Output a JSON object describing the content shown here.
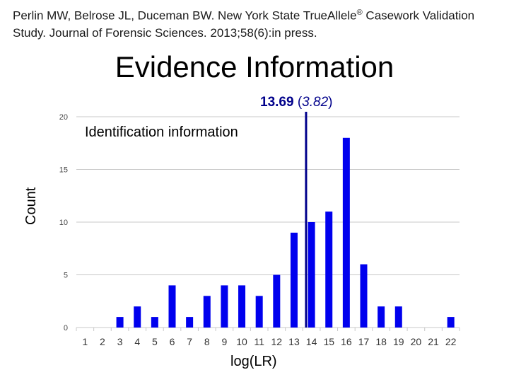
{
  "slide": {
    "citation_text": "Perlin MW, Belrose JL, Duceman BW. New York State TrueAllele",
    "citation_reg": "®",
    "citation_text2": " Casework Validation Study. Journal of Forensic Sciences. 2013;58(6):in press.",
    "title": "Evidence Information"
  },
  "chart_data": {
    "type": "bar",
    "panel_label": "Identification information",
    "xlabel": "log(LR)",
    "ylabel": "Count",
    "categories": [
      "1",
      "2",
      "3",
      "4",
      "5",
      "6",
      "7",
      "8",
      "9",
      "10",
      "11",
      "12",
      "13",
      "14",
      "15",
      "16",
      "17",
      "18",
      "19",
      "20",
      "21",
      "22"
    ],
    "values": [
      0,
      0,
      1,
      2,
      1,
      4,
      1,
      3,
      4,
      4,
      3,
      5,
      9,
      10,
      11,
      18,
      6,
      2,
      2,
      0,
      0,
      1
    ],
    "ylim": [
      0,
      20
    ],
    "yticks": [
      0,
      5,
      10,
      15,
      20
    ],
    "grid": true,
    "bar_color": "#0000ee",
    "marker": {
      "x": 13.69,
      "value_label": "13.69",
      "sd_label": "3.82",
      "color": "#00008b"
    }
  }
}
